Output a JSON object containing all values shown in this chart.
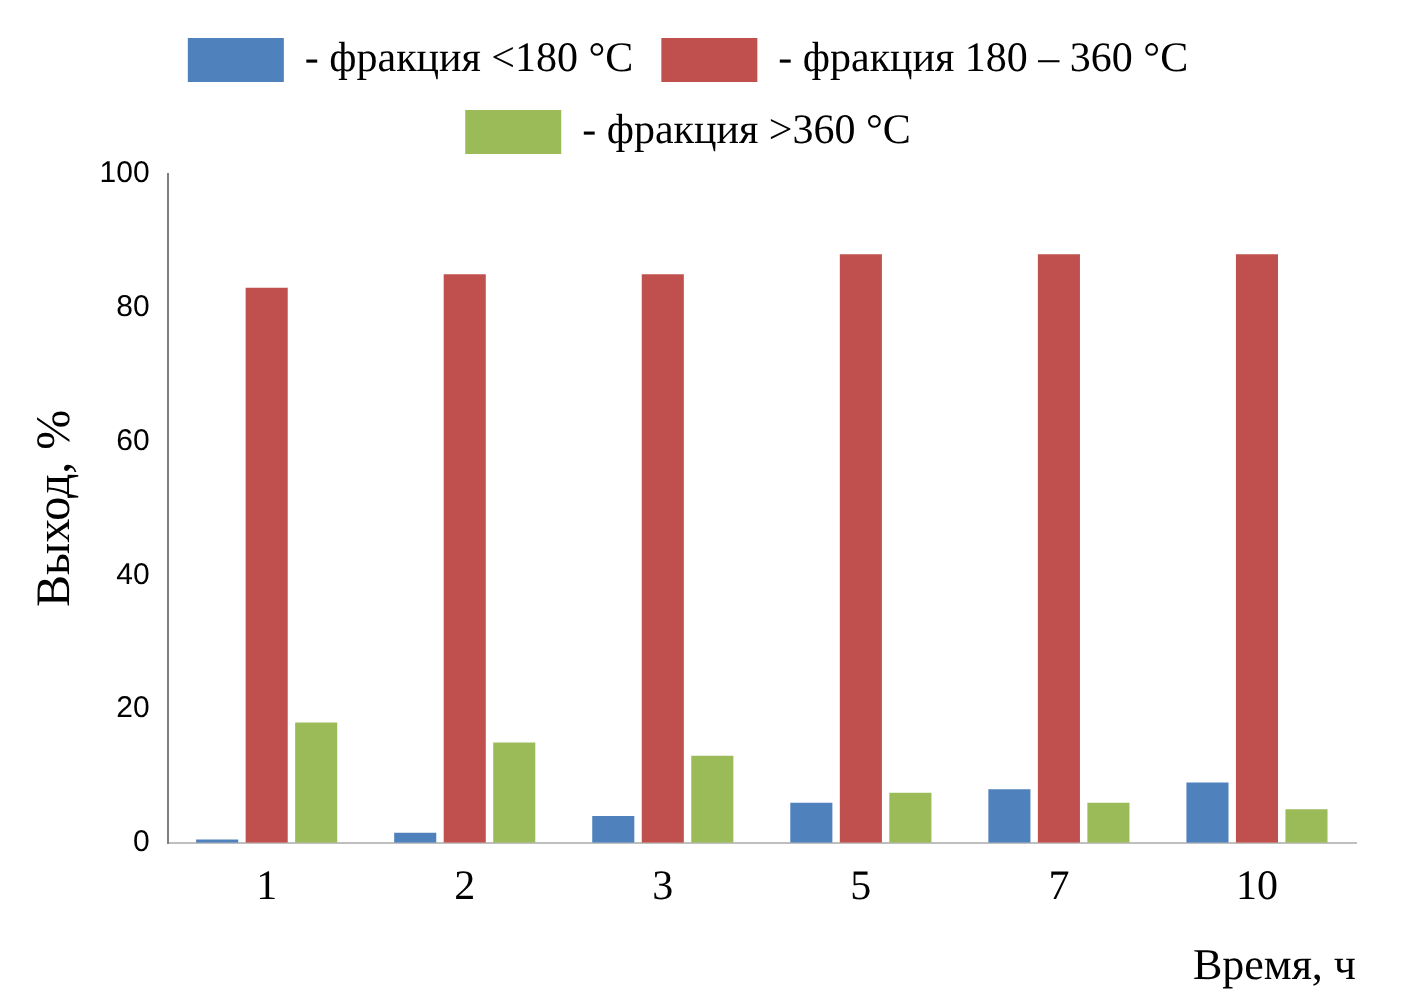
{
  "chart_data": {
    "type": "bar",
    "xlabel": "Время, ч",
    "ylabel": "Выход, %",
    "categories": [
      "1",
      "2",
      "3",
      "5",
      "7",
      "10"
    ],
    "series": [
      {
        "name": "- фракция <180 °C",
        "color": "#4f81bd",
        "values": [
          0.5,
          1.5,
          4,
          6,
          8,
          9
        ]
      },
      {
        "name": "- фракция 180 – 360 °C",
        "color": "#c0504d",
        "values": [
          83,
          85,
          85,
          88,
          88,
          88
        ]
      },
      {
        "name": "- фракция >360 °C",
        "color": "#9bbb59",
        "values": [
          18,
          15,
          13,
          7.5,
          6,
          5
        ]
      }
    ],
    "ylim": [
      0,
      100
    ],
    "yticks": [
      0,
      20,
      40,
      60,
      80,
      100
    ],
    "grid": false,
    "legend": "top"
  }
}
